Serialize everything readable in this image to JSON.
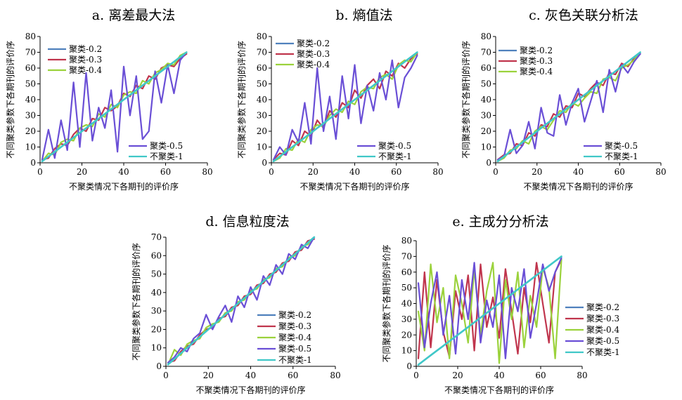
{
  "figure": {
    "panels": [
      {
        "title": "a. 离差最大法",
        "xlabel": "不聚类情况下各期刊的评价序",
        "ylabel": "不同聚类参数下各期刊的评价序"
      },
      {
        "title": "b. 熵值法",
        "xlabel": "不聚类情况下各期刊的评价序",
        "ylabel": "不同聚类参数下各期刊的评价序"
      },
      {
        "title": "c. 灰色关联分析法",
        "xlabel": "不聚类情况下各期刊的评价序",
        "ylabel": "不同聚类参数下各期刊的评价序"
      },
      {
        "title": "d. 信息粒度法",
        "xlabel": "不聚类情况下各期刊的评价序",
        "ylabel": "不同聚类参数下各期刊的评价序"
      },
      {
        "title": "e. 主成分分析法",
        "xlabel": "不聚类情况下各期刊的评价序",
        "ylabel": "不同聚类参数下各期刊的评价序"
      }
    ]
  },
  "chart_data": [
    {
      "type": "line",
      "title": "a. 离差最大法",
      "xlabel": "不聚类情况下各期刊的评价序",
      "ylabel": "不同聚类参数下各期刊的评价序",
      "xlim": [
        0,
        80
      ],
      "ylim": [
        0,
        80
      ],
      "xticks": [
        "0",
        "20",
        "40",
        "60",
        "80"
      ],
      "yticks": [
        "0",
        "10",
        "20",
        "30",
        "40",
        "50",
        "60",
        "70",
        "80"
      ],
      "legend_position": "split: top-left (0.2,0.3,0.4) and bottom-right (0.5,1)",
      "x": [
        1,
        4,
        7,
        10,
        13,
        16,
        19,
        22,
        25,
        28,
        31,
        34,
        37,
        40,
        43,
        46,
        49,
        52,
        55,
        58,
        61,
        64,
        67,
        70
      ],
      "series": [
        {
          "name": "聚类-0.2",
          "color": "#4f81bd",
          "values": [
            1,
            4,
            7,
            10,
            13,
            16,
            19,
            22,
            25,
            28,
            31,
            34,
            37,
            40,
            43,
            46,
            49,
            52,
            55,
            58,
            61,
            64,
            67,
            70
          ]
        },
        {
          "name": "聚类-0.3",
          "color": "#c0354d",
          "values": [
            2,
            3,
            9,
            12,
            11,
            18,
            22,
            20,
            28,
            27,
            35,
            33,
            36,
            44,
            42,
            49,
            47,
            55,
            53,
            60,
            62,
            61,
            66,
            69
          ]
        },
        {
          "name": "聚类-0.4",
          "color": "#9bd23c",
          "values": [
            1,
            6,
            5,
            13,
            15,
            14,
            22,
            24,
            23,
            31,
            29,
            37,
            35,
            43,
            45,
            44,
            52,
            50,
            57,
            59,
            63,
            62,
            68,
            70
          ]
        },
        {
          "name": "聚类-0.5",
          "color": "#6a4fd6",
          "values": [
            2,
            21,
            3,
            27,
            8,
            51,
            10,
            57,
            14,
            35,
            22,
            46,
            7,
            61,
            30,
            55,
            15,
            20,
            58,
            38,
            62,
            44,
            65,
            70
          ]
        },
        {
          "name": "不聚类-1",
          "color": "#40c8c8",
          "values": [
            1,
            4,
            7,
            10,
            13,
            16,
            19,
            22,
            25,
            28,
            31,
            34,
            37,
            40,
            43,
            46,
            49,
            52,
            55,
            58,
            61,
            64,
            67,
            70
          ]
        }
      ]
    },
    {
      "type": "line",
      "title": "b. 熵值法",
      "xlabel": "不聚类情况下各期刊的评价序",
      "ylabel": "不同聚类参数下各期刊的评价序",
      "xlim": [
        0,
        80
      ],
      "ylim": [
        0,
        80
      ],
      "xticks": [
        "0",
        "20",
        "40",
        "60",
        "80"
      ],
      "yticks": [
        "0",
        "10",
        "20",
        "30",
        "40",
        "50",
        "60",
        "70",
        "80"
      ],
      "legend_position": "split: top-left (0.2,0.3,0.4) and bottom-right (0.5,1)",
      "x": [
        1,
        4,
        7,
        10,
        13,
        16,
        19,
        22,
        25,
        28,
        31,
        34,
        37,
        40,
        43,
        46,
        49,
        52,
        55,
        58,
        61,
        64,
        67,
        70
      ],
      "series": [
        {
          "name": "聚类-0.2",
          "color": "#4f81bd",
          "values": [
            1,
            4,
            7,
            10,
            13,
            16,
            19,
            22,
            25,
            28,
            31,
            34,
            37,
            40,
            43,
            46,
            49,
            52,
            55,
            58,
            61,
            64,
            67,
            70
          ]
        },
        {
          "name": "聚类-0.3",
          "color": "#c0354d",
          "values": [
            2,
            6,
            5,
            14,
            11,
            20,
            17,
            27,
            22,
            33,
            29,
            38,
            35,
            46,
            41,
            49,
            53,
            47,
            58,
            55,
            63,
            60,
            66,
            69
          ]
        },
        {
          "name": "聚类-0.4",
          "color": "#9bd23c",
          "values": [
            1,
            3,
            9,
            8,
            15,
            13,
            21,
            24,
            23,
            30,
            34,
            32,
            39,
            37,
            45,
            48,
            47,
            54,
            56,
            53,
            62,
            65,
            64,
            70
          ]
        },
        {
          "name": "聚类-0.5",
          "color": "#6a4fd6",
          "values": [
            2,
            10,
            5,
            21,
            13,
            38,
            12,
            60,
            20,
            42,
            15,
            55,
            28,
            62,
            25,
            49,
            33,
            57,
            40,
            65,
            35,
            54,
            60,
            68
          ]
        },
        {
          "name": "不聚类-1",
          "color": "#40c8c8",
          "values": [
            1,
            4,
            7,
            10,
            13,
            16,
            19,
            22,
            25,
            28,
            31,
            34,
            37,
            40,
            43,
            46,
            49,
            52,
            55,
            58,
            61,
            64,
            67,
            70
          ]
        }
      ]
    },
    {
      "type": "line",
      "title": "c. 灰色关联分析法",
      "xlabel": "不聚类情况下各期刊的评价序",
      "ylabel": "不同聚类参数下各期刊的评价序",
      "xlim": [
        0,
        80
      ],
      "ylim": [
        0,
        80
      ],
      "xticks": [
        "0",
        "20",
        "40",
        "60",
        "80"
      ],
      "yticks": [
        "0",
        "10",
        "20",
        "30",
        "40",
        "50",
        "60",
        "70",
        "80"
      ],
      "legend_position": "split: top-left (0.2,0.3,0.4) and bottom-right (0.5,1)",
      "x": [
        1,
        4,
        7,
        10,
        13,
        16,
        19,
        22,
        25,
        28,
        31,
        34,
        37,
        40,
        43,
        46,
        49,
        52,
        55,
        58,
        61,
        64,
        67,
        70
      ],
      "series": [
        {
          "name": "聚类-0.2",
          "color": "#4f81bd",
          "values": [
            1,
            4,
            7,
            10,
            13,
            16,
            19,
            22,
            25,
            28,
            31,
            34,
            37,
            40,
            43,
            46,
            49,
            52,
            55,
            58,
            61,
            64,
            67,
            70
          ]
        },
        {
          "name": "聚类-0.3",
          "color": "#c0354d",
          "values": [
            2,
            5,
            6,
            12,
            11,
            19,
            17,
            24,
            23,
            31,
            29,
            36,
            35,
            44,
            42,
            47,
            51,
            49,
            57,
            56,
            63,
            61,
            66,
            69
          ]
        },
        {
          "name": "聚类-0.4",
          "color": "#9bd23c",
          "values": [
            1,
            3,
            8,
            9,
            14,
            12,
            20,
            23,
            21,
            27,
            33,
            32,
            38,
            36,
            41,
            45,
            44,
            53,
            54,
            52,
            60,
            62,
            65,
            70
          ]
        },
        {
          "name": "聚类-0.5",
          "color": "#6a4fd6",
          "values": [
            2,
            4,
            21,
            6,
            11,
            26,
            9,
            35,
            19,
            17,
            43,
            24,
            38,
            47,
            26,
            39,
            52,
            32,
            59,
            45,
            62,
            57,
            64,
            69
          ]
        },
        {
          "name": "不聚类-1",
          "color": "#40c8c8",
          "values": [
            1,
            4,
            7,
            10,
            13,
            16,
            19,
            22,
            25,
            28,
            31,
            34,
            37,
            40,
            43,
            46,
            49,
            52,
            55,
            58,
            61,
            64,
            67,
            70
          ]
        }
      ]
    },
    {
      "type": "line",
      "title": "d. 信息粒度法",
      "xlabel": "不聚类情况下各期刊的评价序",
      "ylabel": "不同聚类参数下各期刊的评价序",
      "xlim": [
        0,
        80
      ],
      "ylim": [
        0,
        70
      ],
      "xticks": [
        "0",
        "20",
        "40",
        "60",
        "80"
      ],
      "yticks": [
        "0",
        "10",
        "20",
        "30",
        "40",
        "50",
        "60",
        "70"
      ],
      "legend_position": "right",
      "x": [
        1,
        4,
        7,
        10,
        13,
        16,
        19,
        22,
        25,
        28,
        31,
        34,
        37,
        40,
        43,
        46,
        49,
        52,
        55,
        58,
        61,
        64,
        67,
        70
      ],
      "series": [
        {
          "name": "聚类-0.2",
          "color": "#4f81bd",
          "values": [
            1,
            4,
            7,
            10,
            13,
            16,
            19,
            22,
            25,
            28,
            31,
            34,
            37,
            40,
            43,
            46,
            49,
            52,
            55,
            58,
            61,
            64,
            67,
            70
          ]
        },
        {
          "name": "聚类-0.3",
          "color": "#c0354d",
          "values": [
            2,
            3,
            8,
            11,
            12,
            17,
            20,
            21,
            26,
            27,
            32,
            33,
            38,
            39,
            44,
            45,
            50,
            51,
            56,
            57,
            62,
            63,
            68,
            69
          ]
        },
        {
          "name": "聚类-0.4",
          "color": "#9bd23c",
          "values": [
            1,
            9,
            6,
            12,
            14,
            15,
            21,
            23,
            24,
            29,
            30,
            35,
            36,
            41,
            42,
            47,
            48,
            53,
            54,
            59,
            60,
            65,
            66,
            70
          ]
        },
        {
          "name": "聚类-0.5",
          "color": "#6a4fd6",
          "values": [
            2,
            5,
            10,
            8,
            15,
            18,
            28,
            20,
            27,
            33,
            24,
            38,
            32,
            43,
            36,
            49,
            44,
            55,
            50,
            61,
            58,
            66,
            64,
            70
          ]
        },
        {
          "name": "不聚类-1",
          "color": "#40c8c8",
          "values": [
            1,
            4,
            7,
            10,
            13,
            16,
            19,
            22,
            25,
            28,
            31,
            34,
            37,
            40,
            43,
            46,
            49,
            52,
            55,
            58,
            61,
            64,
            67,
            70
          ]
        }
      ]
    },
    {
      "type": "line",
      "title": "e. 主成分分析法",
      "xlabel": "不聚类情况下各期刊的评价序",
      "ylabel": "不同聚类参数下各期刊的评价序",
      "xlim": [
        0,
        80
      ],
      "ylim": [
        0,
        80
      ],
      "xticks": [
        "0",
        "20",
        "40",
        "60",
        "80"
      ],
      "yticks": [
        "0",
        "10",
        "20",
        "30",
        "40",
        "50",
        "60",
        "70",
        "80"
      ],
      "legend_position": "right",
      "x": [
        1,
        4,
        7,
        10,
        13,
        16,
        19,
        22,
        25,
        28,
        31,
        34,
        37,
        40,
        43,
        46,
        49,
        52,
        55,
        58,
        61,
        64,
        67,
        70
      ],
      "series": [
        {
          "name": "聚类-0.2",
          "color": "#4f81bd",
          "values": [
            1,
            4,
            7,
            10,
            13,
            16,
            19,
            22,
            25,
            28,
            31,
            34,
            37,
            40,
            43,
            46,
            49,
            52,
            55,
            58,
            61,
            64,
            67,
            70
          ]
        },
        {
          "name": "聚类-0.3",
          "color": "#c0354d",
          "values": [
            5,
            60,
            12,
            55,
            22,
            6,
            48,
            30,
            58,
            10,
            65,
            25,
            44,
            18,
            62,
            35,
            8,
            50,
            28,
            66,
            40,
            15,
            60,
            68
          ]
        },
        {
          "name": "聚类-0.4",
          "color": "#9bd23c",
          "values": [
            35,
            10,
            65,
            28,
            50,
            5,
            58,
            40,
            15,
            62,
            20,
            48,
            66,
            2,
            55,
            30,
            60,
            12,
            45,
            25,
            63,
            50,
            5,
            68
          ]
        },
        {
          "name": "聚类-0.5",
          "color": "#6a4fd6",
          "values": [
            53,
            12,
            40,
            60,
            20,
            45,
            8,
            55,
            30,
            66,
            15,
            42,
            25,
            58,
            5,
            50,
            35,
            62,
            18,
            40,
            65,
            48,
            60,
            69
          ]
        },
        {
          "name": "不聚类-1",
          "color": "#40c8c8",
          "values": [
            1,
            4,
            7,
            10,
            13,
            16,
            19,
            22,
            25,
            28,
            31,
            34,
            37,
            40,
            43,
            46,
            49,
            52,
            55,
            58,
            61,
            64,
            67,
            70
          ]
        }
      ]
    }
  ]
}
